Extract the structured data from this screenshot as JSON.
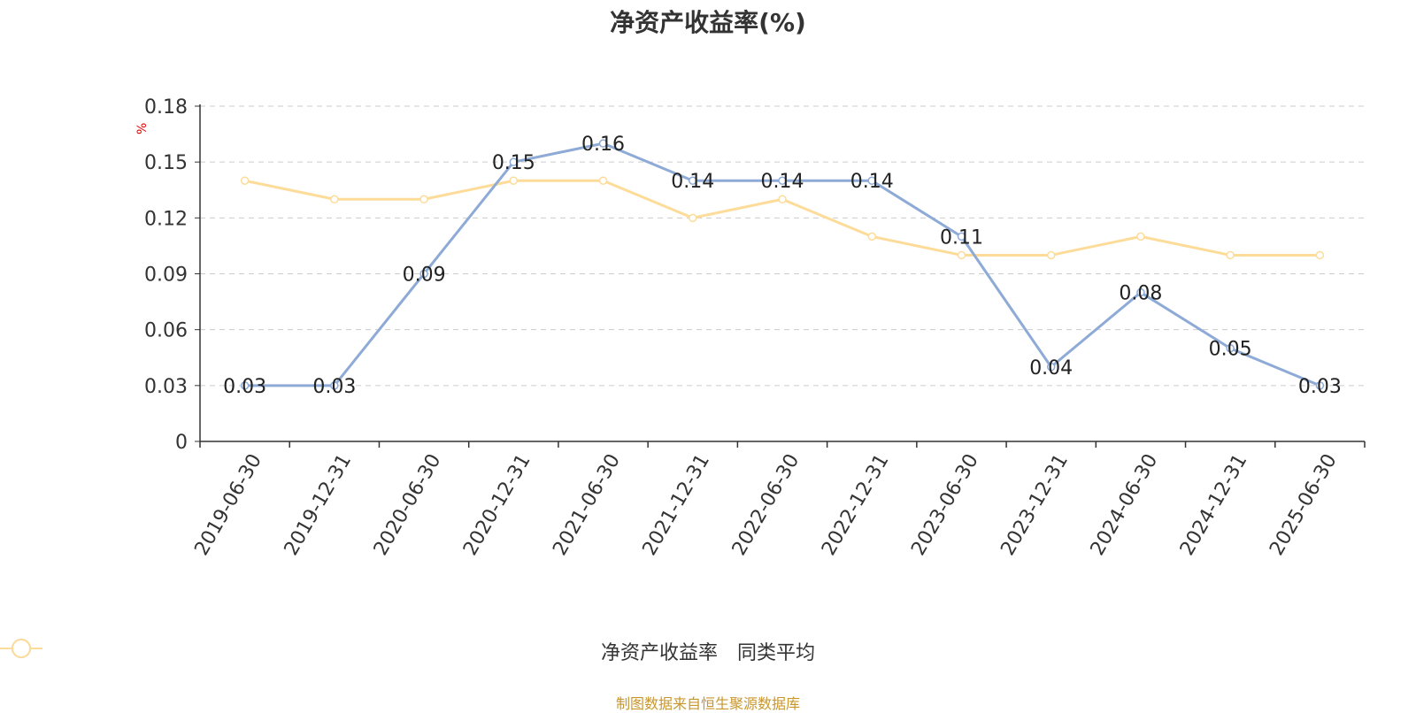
{
  "chart_data": {
    "type": "line",
    "title": "净资产收益率(%)",
    "unit_label": "%",
    "categories": [
      "2019-06-30",
      "2019-12-31",
      "2020-06-30",
      "2020-12-31",
      "2021-06-30",
      "2021-12-31",
      "2022-06-30",
      "2022-12-31",
      "2023-06-30",
      "2023-12-31",
      "2024-06-30",
      "2024-12-31",
      "2025-06-30"
    ],
    "y_ticks": [
      "0",
      "0.03",
      "0.06",
      "0.09",
      "0.12",
      "0.15",
      "0.18"
    ],
    "ylim": [
      0,
      0.18
    ],
    "grid": true,
    "legend_position": "bottom",
    "series": [
      {
        "name": "净资产收益率",
        "color": "#8eaad6",
        "values": [
          0.03,
          0.03,
          0.09,
          0.15,
          0.16,
          0.14,
          0.14,
          0.14,
          0.11,
          0.04,
          0.08,
          0.05,
          0.03
        ],
        "labels": [
          "0.03",
          "0.03",
          "0.09",
          "0.15",
          "0.16",
          "0.14",
          "0.14",
          "0.14",
          "0.11",
          "0.04",
          "0.08",
          "0.05",
          "0.03"
        ]
      },
      {
        "name": "同类平均",
        "color": "#fddc9a",
        "values": [
          0.14,
          0.13,
          0.13,
          0.14,
          0.14,
          0.12,
          0.13,
          0.11,
          0.1,
          0.1,
          0.11,
          0.1,
          0.1
        ]
      }
    ],
    "source": "制图数据来自恒生聚源数据库"
  }
}
